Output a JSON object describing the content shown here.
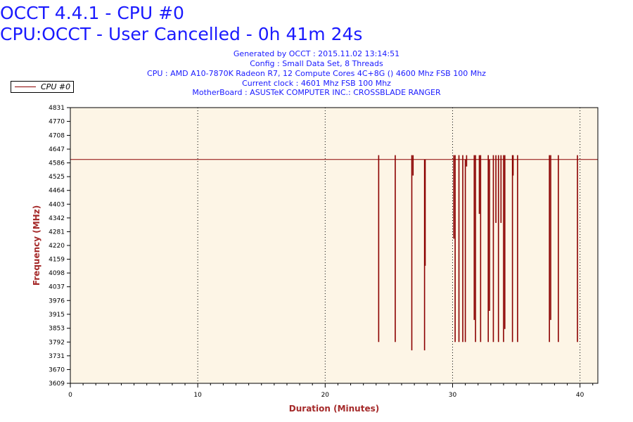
{
  "chart_data": {
    "type": "line",
    "title": "OCCT 4.4.1 - CPU #0",
    "subtitle": "CPU:OCCT - User Cancelled - 0h 41m 24s",
    "info_lines": [
      "Generated by OCCT : 2015.11.02 13:14:51",
      "Config : Small Data Set, 8 Threads",
      "CPU : AMD A10-7870K Radeon R7, 12 Compute Cores 4C+8G () 4600 Mhz FSB 100 Mhz",
      "Current clock : 4601 Mhz FSB 100 Mhz",
      "MotherBoard : ASUSTeK COMPUTER INC.: CROSSBLADE RANGER"
    ],
    "xlabel": "Duration (Minutes)",
    "ylabel": "Frequency (MHz)",
    "xlim": [
      0,
      41.4
    ],
    "ylim": [
      3609,
      4831
    ],
    "xticks": [
      0,
      10,
      20,
      30,
      40
    ],
    "yticks": [
      3609,
      3670,
      3731,
      3792,
      3853,
      3915,
      3976,
      4037,
      4098,
      4159,
      4220,
      4281,
      4342,
      4403,
      4464,
      4525,
      4586,
      4647,
      4708,
      4770,
      4831
    ],
    "grid": "vertical dotted",
    "legend_position": "top-left",
    "colors": {
      "series": "#8b0000",
      "plot_background": "#fdf5e6",
      "title": "#1a1aff",
      "axis_title": "#a52a2a"
    },
    "series": [
      {
        "name": "CPU #0",
        "baseline": 4601,
        "spikes": [
          {
            "x": 24.2,
            "low": 3792,
            "high": 4620
          },
          {
            "x": 25.5,
            "low": 3792,
            "high": 4620
          },
          {
            "x": 26.8,
            "low": 3755,
            "high": 4620
          },
          {
            "x": 26.9,
            "low": 4530,
            "high": 4620
          },
          {
            "x": 27.8,
            "low": 3755,
            "high": 4601
          },
          {
            "x": 27.85,
            "low": 4130,
            "high": 4601
          },
          {
            "x": 30.1,
            "low": 4250,
            "high": 4620
          },
          {
            "x": 30.2,
            "low": 3792,
            "high": 4620
          },
          {
            "x": 30.5,
            "low": 3792,
            "high": 4620
          },
          {
            "x": 30.8,
            "low": 3792,
            "high": 4620
          },
          {
            "x": 31.0,
            "low": 3792,
            "high": 4601
          },
          {
            "x": 31.1,
            "low": 4570,
            "high": 4620
          },
          {
            "x": 31.7,
            "low": 3890,
            "high": 4620
          },
          {
            "x": 31.8,
            "low": 3792,
            "high": 4620
          },
          {
            "x": 32.1,
            "low": 4360,
            "high": 4620
          },
          {
            "x": 32.2,
            "low": 3792,
            "high": 4620
          },
          {
            "x": 32.8,
            "low": 3792,
            "high": 4620
          },
          {
            "x": 32.9,
            "low": 3930,
            "high": 4601
          },
          {
            "x": 33.2,
            "low": 3792,
            "high": 4620
          },
          {
            "x": 33.4,
            "low": 4320,
            "high": 4620
          },
          {
            "x": 33.6,
            "low": 3792,
            "high": 4620
          },
          {
            "x": 33.8,
            "low": 4320,
            "high": 4620
          },
          {
            "x": 34.0,
            "low": 3792,
            "high": 4620
          },
          {
            "x": 34.1,
            "low": 3850,
            "high": 4620
          },
          {
            "x": 34.7,
            "low": 3792,
            "high": 4620
          },
          {
            "x": 34.75,
            "low": 4530,
            "high": 4620
          },
          {
            "x": 35.1,
            "low": 3792,
            "high": 4620
          },
          {
            "x": 37.6,
            "low": 3792,
            "high": 4620
          },
          {
            "x": 37.7,
            "low": 3890,
            "high": 4620
          },
          {
            "x": 38.3,
            "low": 3792,
            "high": 4620
          },
          {
            "x": 39.8,
            "low": 3792,
            "high": 4620
          }
        ]
      }
    ]
  }
}
